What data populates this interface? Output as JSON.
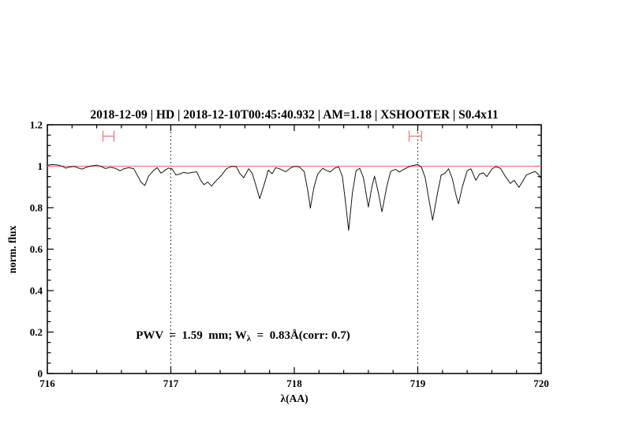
{
  "chart_data": {
    "type": "line",
    "title": "2018-12-09 | HD | 2018-12-10T00:45:40.932 | AM=1.18 | XSHOOTER | S0.4x11",
    "title_color": "#0000cd",
    "xlabel": "λ(AA)",
    "ylabel": "norm. flux",
    "xlim": [
      716,
      720
    ],
    "ylim": [
      0,
      1.2
    ],
    "grid": false,
    "x_major_ticks": [
      716,
      717,
      718,
      719,
      720
    ],
    "x_tick_labels": [
      "716",
      "717",
      "718",
      "719",
      "720"
    ],
    "x_minor_step": 0.2,
    "y_major_ticks": [
      0,
      0.2,
      0.4,
      0.6,
      0.8,
      1.0,
      1.2
    ],
    "y_tick_labels": [
      "0",
      "0.2",
      "0.4",
      "0.6",
      "0.8",
      "1",
      "1.2"
    ],
    "y_minor_step": 0.05,
    "dotted_vlines": [
      717,
      719
    ],
    "continuum_line": {
      "y": 1.0,
      "color": "#f08080"
    },
    "band_markers": [
      {
        "x1": 716.45,
        "x2": 716.54,
        "y": 1.145
      },
      {
        "x1": 718.93,
        "x2": 719.03,
        "y": 1.145
      }
    ],
    "annotation": {
      "prefix": "PWV  =  1.59  mm; W",
      "sub": "λ",
      "suffix": "  =  0.83Å(corr: 0.7)",
      "x": 716.55,
      "y": 0.18,
      "color": "#0000cd"
    },
    "series": [
      {
        "name": "telluric-spectrum",
        "color": "#161616",
        "x": [
          716.0,
          716.04,
          716.08,
          716.12,
          716.15,
          716.18,
          716.22,
          716.25,
          716.28,
          716.32,
          716.36,
          716.4,
          716.44,
          716.47,
          716.51,
          716.55,
          716.59,
          716.62,
          716.66,
          716.7,
          716.73,
          716.76,
          716.79,
          716.82,
          716.86,
          716.89,
          716.92,
          716.95,
          716.98,
          717.01,
          717.04,
          717.07,
          717.1,
          717.14,
          717.18,
          717.21,
          717.24,
          717.27,
          717.3,
          717.33,
          717.37,
          717.41,
          717.45,
          717.49,
          717.53,
          717.56,
          717.59,
          717.63,
          717.66,
          717.69,
          717.72,
          717.76,
          717.79,
          717.82,
          717.85,
          717.89,
          717.93,
          717.97,
          718.0,
          718.04,
          718.08,
          718.11,
          718.13,
          718.16,
          718.19,
          718.23,
          718.26,
          718.29,
          718.33,
          718.36,
          718.39,
          718.42,
          718.44,
          718.47,
          718.5,
          718.53,
          718.56,
          718.6,
          718.63,
          718.65,
          718.68,
          718.71,
          718.75,
          718.78,
          718.82,
          718.85,
          718.89,
          718.93,
          718.97,
          719.0,
          719.03,
          719.06,
          719.09,
          719.12,
          719.16,
          719.19,
          719.22,
          719.25,
          719.28,
          719.31,
          719.33,
          719.36,
          719.4,
          719.43,
          719.47,
          719.5,
          719.53,
          719.56,
          719.6,
          719.63,
          719.67,
          719.71,
          719.75,
          719.78,
          719.82,
          719.85,
          719.88,
          719.92,
          719.95,
          719.98,
          720.0
        ],
        "y": [
          1.005,
          1.008,
          1.006,
          1.0,
          0.991,
          0.996,
          0.999,
          0.992,
          0.986,
          0.996,
          1.002,
          1.005,
          0.998,
          0.989,
          0.995,
          0.99,
          0.978,
          0.988,
          0.993,
          0.988,
          0.955,
          0.922,
          0.907,
          0.952,
          0.98,
          0.993,
          0.966,
          0.98,
          0.991,
          0.988,
          0.958,
          0.962,
          0.97,
          0.966,
          0.971,
          0.973,
          0.934,
          0.911,
          0.924,
          0.904,
          0.932,
          0.956,
          0.988,
          0.999,
          0.998,
          0.965,
          0.944,
          0.988,
          0.965,
          0.905,
          0.843,
          0.92,
          0.982,
          0.964,
          0.993,
          0.985,
          0.973,
          0.992,
          0.999,
          0.997,
          0.975,
          0.88,
          0.798,
          0.9,
          0.962,
          0.99,
          0.98,
          0.972,
          0.992,
          0.996,
          0.95,
          0.8,
          0.69,
          0.87,
          0.978,
          0.99,
          0.945,
          0.803,
          0.905,
          0.952,
          0.875,
          0.78,
          0.905,
          0.975,
          0.985,
          0.972,
          0.986,
          0.998,
          1.005,
          1.008,
          0.995,
          0.945,
          0.84,
          0.74,
          0.87,
          0.958,
          0.966,
          0.988,
          0.94,
          0.86,
          0.818,
          0.898,
          0.978,
          0.988,
          0.932,
          0.962,
          0.968,
          0.95,
          0.986,
          0.998,
          0.99,
          0.95,
          0.917,
          0.932,
          0.898,
          0.928,
          0.958,
          0.968,
          0.975,
          0.958,
          0.94
        ]
      }
    ]
  }
}
